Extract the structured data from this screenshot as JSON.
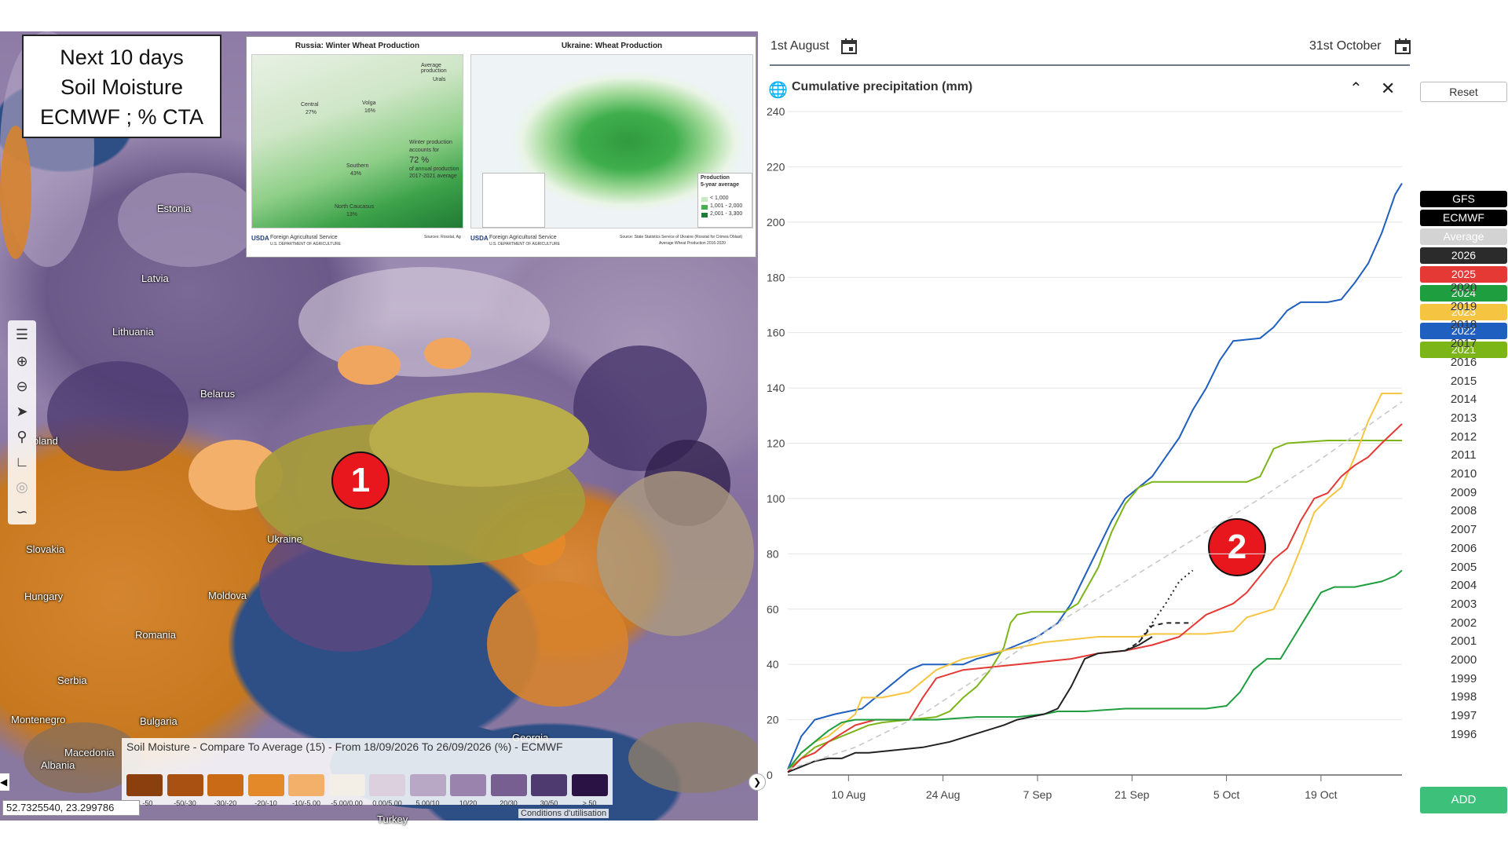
{
  "map_title": [
    "Next 10 days",
    "Soil Moisture",
    "ECMWF ; % CTA"
  ],
  "inset": {
    "russia_title": "Russia: Winter Wheat Production",
    "ukraine_title": "Ukraine: Wheat Production",
    "russia_labels": [
      "Urals",
      "Central",
      "27%",
      "Volga",
      "16%",
      "Southern",
      "43%",
      "North Caucasus",
      "13%",
      "Average production",
      "Winter production",
      "accounts for",
      "72 %",
      "of annual production",
      "2017-2021 average"
    ],
    "ukraine_legend_title": "Production",
    "ukraine_legend_sub": "5-year average",
    "ukraine_legend_items": [
      "< 1,000",
      "1,001 - 2,000",
      "2,001 - 3,300"
    ],
    "agency": "Foreign Agricultural Service",
    "agency_sub": "U.S. DEPARTMENT OF AGRICULTURE",
    "usda": "USDA",
    "ru_source": "Sources: Rosstat, Ag",
    "ua_source": "Source: State Statistics Service of Ukraine (Rosstat for Crimea Oblast)",
    "ua_source2": "Average Wheat Production 2016-2020"
  },
  "country_labels": [
    "Estonia",
    "Latvia",
    "Lithuania",
    "Belarus",
    "oland",
    "Ukraine",
    "Slovakia",
    "Hungary",
    "Moldova",
    "Romania",
    "Serbia",
    "Montenegro",
    "Bulgaria",
    "Macedonia",
    "Albania",
    "Georgia",
    "Turkey"
  ],
  "markers": [
    "1",
    "2"
  ],
  "legend": {
    "title": "Soil Moisture - Compare To Average (15) - From 18/09/2026 To 26/09/2026 (%) - ECMWF",
    "items": [
      {
        "label": "< -50",
        "color": "#8b3f0f"
      },
      {
        "label": "-50/-30",
        "color": "#a95112"
      },
      {
        "label": "-30/-20",
        "color": "#c96a17"
      },
      {
        "label": "-20/-10",
        "color": "#e3892a"
      },
      {
        "label": "-10/-5.00",
        "color": "#f3b06a"
      },
      {
        "label": "-5.00/0.00",
        "color": "#f4efe6"
      },
      {
        "label": "0.00/5.00",
        "color": "#ddd0de"
      },
      {
        "label": "5.00/10",
        "color": "#b9a7c6"
      },
      {
        "label": "10/20",
        "color": "#9a84ae"
      },
      {
        "label": "20/30",
        "color": "#775f91"
      },
      {
        "label": "30/50",
        "color": "#4f3a70"
      },
      {
        "label": "> 50",
        "color": "#2a1244"
      }
    ]
  },
  "coords": "52.7325540, 23.299786",
  "attribution": "Conditions d'utilisation",
  "date_start": "1st August",
  "date_end": "31st October",
  "chart_title": "Cumulative precipitation (mm)",
  "sidebar": {
    "reset": "Reset",
    "add": "ADD",
    "buttons": [
      {
        "label": "GFS",
        "bg": "#000000",
        "fg": "#ffffff"
      },
      {
        "label": "ECMWF",
        "bg": "#000000",
        "fg": "#ffffff"
      },
      {
        "label": "Average",
        "bg": "#d3d3d3",
        "fg": "#ffffff"
      },
      {
        "label": "2026",
        "bg": "#2b2b2b",
        "fg": "#ffffff"
      },
      {
        "label": "2025",
        "bg": "#e53935",
        "fg": "#ffffff"
      },
      {
        "label": "2024",
        "bg": "#1e9e3e",
        "fg": "#ffffff"
      },
      {
        "label": "2023",
        "bg": "#f5c542",
        "fg": "#ffffff"
      },
      {
        "label": "2022",
        "bg": "#1f5fbf",
        "fg": "#ffffff"
      },
      {
        "label": "2021",
        "bg": "#7cb518",
        "fg": "#ffffff"
      }
    ],
    "years": [
      "2020",
      "2019",
      "2018",
      "2017",
      "2016",
      "2015",
      "2014",
      "2013",
      "2012",
      "2011",
      "2010",
      "2009",
      "2008",
      "2007",
      "2006",
      "2005",
      "2004",
      "2003",
      "2002",
      "2001",
      "2000",
      "1999",
      "1998",
      "1997",
      "1996"
    ]
  },
  "chart_data": {
    "type": "line",
    "title": "Cumulative precipitation (mm)",
    "xlabel": "",
    "ylabel": "",
    "x_ticks": [
      "10 Aug",
      "24 Aug",
      "7 Sep",
      "21 Sep",
      "5 Oct",
      "19 Oct"
    ],
    "x_tick_day": [
      9,
      23,
      37,
      51,
      65,
      79
    ],
    "x_range_day": [
      0,
      91
    ],
    "ylim": [
      0,
      240
    ],
    "y_ticks": [
      0,
      20,
      40,
      60,
      80,
      100,
      120,
      140,
      160,
      180,
      200,
      220,
      240
    ],
    "grid": "horizontal",
    "series": [
      {
        "name": "2022",
        "color": "#1f5fbf",
        "dash": "",
        "points": [
          [
            0,
            2
          ],
          [
            2,
            14
          ],
          [
            4,
            20
          ],
          [
            7,
            22
          ],
          [
            9,
            23
          ],
          [
            11,
            24
          ],
          [
            14,
            30
          ],
          [
            16,
            34
          ],
          [
            18,
            38
          ],
          [
            20,
            40
          ],
          [
            26,
            40
          ],
          [
            28,
            42
          ],
          [
            31,
            44
          ],
          [
            34,
            47
          ],
          [
            37,
            50
          ],
          [
            40,
            55
          ],
          [
            42,
            62
          ],
          [
            44,
            72
          ],
          [
            46,
            82
          ],
          [
            48,
            92
          ],
          [
            50,
            100
          ],
          [
            52,
            104
          ],
          [
            54,
            108
          ],
          [
            56,
            115
          ],
          [
            58,
            122
          ],
          [
            60,
            132
          ],
          [
            62,
            140
          ],
          [
            64,
            150
          ],
          [
            66,
            157
          ],
          [
            70,
            158
          ],
          [
            72,
            162
          ],
          [
            74,
            168
          ],
          [
            76,
            171
          ],
          [
            80,
            171
          ],
          [
            82,
            172
          ],
          [
            84,
            178
          ],
          [
            86,
            185
          ],
          [
            88,
            196
          ],
          [
            90,
            210
          ],
          [
            91,
            214
          ]
        ]
      },
      {
        "name": "2021",
        "color": "#7cb518",
        "dash": "",
        "points": [
          [
            0,
            2
          ],
          [
            2,
            6
          ],
          [
            4,
            10
          ],
          [
            6,
            12
          ],
          [
            8,
            14
          ],
          [
            10,
            16
          ],
          [
            12,
            18
          ],
          [
            14,
            19
          ],
          [
            18,
            20
          ],
          [
            22,
            21
          ],
          [
            24,
            23
          ],
          [
            26,
            28
          ],
          [
            28,
            32
          ],
          [
            30,
            38
          ],
          [
            32,
            46
          ],
          [
            33,
            55
          ],
          [
            34,
            58
          ],
          [
            36,
            59
          ],
          [
            41,
            59
          ],
          [
            43,
            62
          ],
          [
            46,
            75
          ],
          [
            48,
            88
          ],
          [
            50,
            98
          ],
          [
            52,
            104
          ],
          [
            54,
            106
          ],
          [
            64,
            106
          ],
          [
            68,
            106
          ],
          [
            70,
            108
          ],
          [
            72,
            118
          ],
          [
            74,
            120
          ],
          [
            80,
            121
          ],
          [
            84,
            121
          ],
          [
            91,
            121
          ]
        ]
      },
      {
        "name": "2023",
        "color": "#f5c542",
        "dash": "",
        "points": [
          [
            0,
            2
          ],
          [
            2,
            8
          ],
          [
            4,
            12
          ],
          [
            6,
            14
          ],
          [
            8,
            18
          ],
          [
            10,
            22
          ],
          [
            11,
            28
          ],
          [
            14,
            28
          ],
          [
            18,
            30
          ],
          [
            20,
            34
          ],
          [
            22,
            38
          ],
          [
            24,
            40
          ],
          [
            26,
            42
          ],
          [
            30,
            44
          ],
          [
            34,
            46
          ],
          [
            38,
            48
          ],
          [
            42,
            49
          ],
          [
            46,
            50
          ],
          [
            52,
            50
          ],
          [
            54,
            51
          ],
          [
            62,
            51
          ],
          [
            66,
            52
          ],
          [
            68,
            57
          ],
          [
            72,
            60
          ],
          [
            74,
            70
          ],
          [
            76,
            82
          ],
          [
            78,
            95
          ],
          [
            80,
            100
          ],
          [
            82,
            104
          ],
          [
            84,
            115
          ],
          [
            86,
            128
          ],
          [
            88,
            138
          ],
          [
            91,
            138
          ]
        ]
      },
      {
        "name": "2025",
        "color": "#e53935",
        "dash": "",
        "points": [
          [
            0,
            1
          ],
          [
            2,
            6
          ],
          [
            4,
            8
          ],
          [
            6,
            12
          ],
          [
            8,
            15
          ],
          [
            10,
            18
          ],
          [
            13,
            20
          ],
          [
            18,
            20
          ],
          [
            20,
            28
          ],
          [
            22,
            35
          ],
          [
            26,
            38
          ],
          [
            30,
            39
          ],
          [
            34,
            40
          ],
          [
            38,
            41
          ],
          [
            42,
            42
          ],
          [
            46,
            44
          ],
          [
            50,
            45
          ],
          [
            54,
            47
          ],
          [
            58,
            50
          ],
          [
            60,
            54
          ],
          [
            62,
            58
          ],
          [
            64,
            60
          ],
          [
            66,
            62
          ],
          [
            68,
            66
          ],
          [
            70,
            72
          ],
          [
            72,
            78
          ],
          [
            74,
            82
          ],
          [
            76,
            92
          ],
          [
            78,
            100
          ],
          [
            80,
            102
          ],
          [
            82,
            108
          ],
          [
            84,
            112
          ],
          [
            86,
            115
          ],
          [
            88,
            120
          ],
          [
            91,
            127
          ]
        ]
      },
      {
        "name": "2024",
        "color": "#1e9e3e",
        "dash": "",
        "points": [
          [
            0,
            2
          ],
          [
            2,
            8
          ],
          [
            4,
            12
          ],
          [
            6,
            16
          ],
          [
            8,
            19
          ],
          [
            10,
            20
          ],
          [
            18,
            20
          ],
          [
            22,
            20
          ],
          [
            28,
            21
          ],
          [
            34,
            21
          ],
          [
            38,
            22
          ],
          [
            40,
            23
          ],
          [
            44,
            23
          ],
          [
            50,
            24
          ],
          [
            56,
            24
          ],
          [
            62,
            24
          ],
          [
            65,
            25
          ],
          [
            67,
            30
          ],
          [
            69,
            38
          ],
          [
            71,
            42
          ],
          [
            73,
            42
          ],
          [
            75,
            50
          ],
          [
            77,
            58
          ],
          [
            79,
            66
          ],
          [
            81,
            68
          ],
          [
            84,
            68
          ],
          [
            88,
            70
          ],
          [
            90,
            72
          ],
          [
            91,
            74
          ]
        ]
      },
      {
        "name": "2026",
        "color": "#222222",
        "dash": "",
        "points": [
          [
            0,
            1
          ],
          [
            2,
            3
          ],
          [
            4,
            5
          ],
          [
            6,
            6
          ],
          [
            8,
            6
          ],
          [
            10,
            8
          ],
          [
            12,
            8
          ],
          [
            16,
            9
          ],
          [
            20,
            10
          ],
          [
            24,
            12
          ],
          [
            28,
            15
          ],
          [
            32,
            18
          ],
          [
            34,
            20
          ],
          [
            38,
            22
          ],
          [
            40,
            24
          ],
          [
            42,
            32
          ],
          [
            44,
            42
          ],
          [
            46,
            44
          ],
          [
            50,
            45
          ],
          [
            52,
            47
          ],
          [
            54,
            50
          ]
        ]
      },
      {
        "name": "ECMWF",
        "color": "#222222",
        "dash": "6,5",
        "points": [
          [
            50,
            45
          ],
          [
            52,
            48
          ],
          [
            54,
            54
          ],
          [
            56,
            55
          ],
          [
            60,
            55
          ]
        ]
      },
      {
        "name": "GFS",
        "color": "#222222",
        "dash": "2,4",
        "points": [
          [
            52,
            48
          ],
          [
            54,
            55
          ],
          [
            56,
            62
          ],
          [
            58,
            70
          ],
          [
            60,
            74
          ]
        ]
      },
      {
        "name": "Average",
        "color": "#c8c8c8",
        "dash": "7,5",
        "points": [
          [
            0,
            2
          ],
          [
            10,
            10
          ],
          [
            20,
            22
          ],
          [
            30,
            38
          ],
          [
            40,
            55
          ],
          [
            50,
            70
          ],
          [
            60,
            85
          ],
          [
            70,
            100
          ],
          [
            80,
            116
          ],
          [
            91,
            135
          ]
        ]
      }
    ]
  }
}
